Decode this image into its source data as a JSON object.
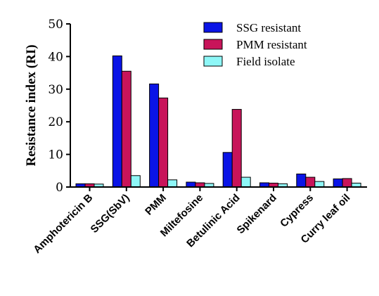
{
  "chart_data": {
    "type": "bar",
    "title": "",
    "xlabel": "",
    "ylabel": "Resistance index (RI)",
    "ylim": [
      0,
      50
    ],
    "yticks": [
      0,
      10,
      20,
      30,
      40,
      50
    ],
    "grid": false,
    "legend_position": "top-right",
    "categories": [
      "Amphotericin B",
      "SSG(SbV)",
      "PMM",
      "Miltefosine",
      "Betulinic Acid",
      "Spikenard",
      "Cypress",
      "Curry leaf oil"
    ],
    "series": [
      {
        "name": "SSG resistant",
        "color": "#0a14e6",
        "values": [
          1.0,
          40.2,
          31.6,
          1.5,
          10.6,
          1.3,
          4.0,
          2.5
        ]
      },
      {
        "name": "PMM resistant",
        "color": "#c8145a",
        "values": [
          1.0,
          35.5,
          27.3,
          1.3,
          23.8,
          1.2,
          3.0,
          2.6
        ]
      },
      {
        "name": "Field isolate",
        "color": "#8ef7f7",
        "values": [
          0.9,
          3.5,
          2.2,
          1.1,
          3.0,
          1.0,
          1.7,
          1.2
        ]
      }
    ]
  }
}
